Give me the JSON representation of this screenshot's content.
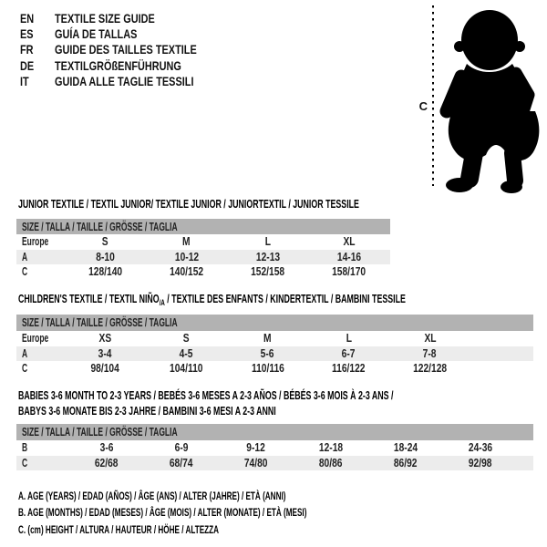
{
  "colors": {
    "header_bar": "#b2b2b2",
    "shaded_row": "#ececec",
    "text": "#1f1f1f",
    "silhouette": "#000000"
  },
  "header": {
    "entries": [
      {
        "code": "EN",
        "title": "TEXTILE SIZE GUIDE"
      },
      {
        "code": "ES",
        "title": "GUÍA DE TALLAS"
      },
      {
        "code": "FR",
        "title": "GUIDE DES TAILLES TEXTILE"
      },
      {
        "code": "DE",
        "title": "TEXTILGRÖßENFÜHRUNG"
      },
      {
        "code": "IT",
        "title": "GUIDA ALLE TAGLIE TESSILI"
      }
    ]
  },
  "figure": {
    "height_label": "C",
    "depicts": "baby-silhouette"
  },
  "tables": [
    {
      "title_lines": [
        [
          {
            "text": "JUNIOR TEXTILE / TEXTIL JUNIOR/ TEXTILE JUNIOR / JUNIORTEXTIL / JUNIOR TESSILE"
          }
        ]
      ],
      "size_header": "SIZE / TALLA / TAILLE / GRÖSSE / TAGLIA",
      "rows": [
        {
          "label": "Europe",
          "cells": [
            "S",
            "M",
            "L",
            "XL"
          ],
          "shaded": false
        },
        {
          "label": "A",
          "cells": [
            "8-10",
            "10-12",
            "12-13",
            "14-16"
          ],
          "shaded": true
        },
        {
          "label": "C",
          "cells": [
            "128/140",
            "140/152",
            "152/158",
            "158/170"
          ],
          "shaded": false
        }
      ]
    },
    {
      "title_lines": [
        [
          {
            "text": "CHILDREN'S TEXTILE / TEXTIL NIÑO"
          },
          {
            "text": "/A",
            "sub": true
          },
          {
            "text": " / TEXTILE DES ENFANTS / KINDERTEXTIL / BAMBINI TESSILE"
          }
        ]
      ],
      "size_header": "SIZE / TALLA / TAILLE / GRÖSSE / TAGLIA",
      "rows": [
        {
          "label": "Europe",
          "cells": [
            "XS",
            "S",
            "M",
            "L",
            "XL"
          ],
          "shaded": false
        },
        {
          "label": "A",
          "cells": [
            "3-4",
            "4-5",
            "5-6",
            "6-7",
            "7-8"
          ],
          "shaded": true
        },
        {
          "label": "C",
          "cells": [
            "98/104",
            "104/110",
            "110/116",
            "116/122",
            "122/128"
          ],
          "shaded": false
        }
      ]
    },
    {
      "title_lines": [
        [
          {
            "text": "BABIES 3-6 MONTH TO 2-3 YEARS / BEBÉS 3-6 MESES A 2-3 AÑOS / BÉBÉS 3-6 MOIS À 2-3 ANS /"
          }
        ],
        [
          {
            "text": "BABYS 3-6 MONATE BIS 2-3 JAHRE / BAMBINI 3-6 MESI A 2-3 ANNI"
          }
        ]
      ],
      "size_header": "SIZE / TALLA / TAILLE / GRÖSSE / TAGLIA",
      "rows": [
        {
          "label": "B",
          "cells": [
            "3-6",
            "6-9",
            "9-12",
            "12-18",
            "18-24",
            "24-36"
          ],
          "shaded": false
        },
        {
          "label": "C",
          "cells": [
            "62/68",
            "68/74",
            "74/80",
            "80/86",
            "86/92",
            "92/98"
          ],
          "shaded": true
        }
      ]
    }
  ],
  "footnotes": [
    "A. AGE (YEARS) / EDAD (AÑOS) / ÂGE (ANS) / ALTER (JAHRE) / ETÀ (ANNI)",
    "B. AGE (MONTHS) / EDAD (MESES) / ÂGE (MOIS) / ALTER (MONATE) / ETÀ (MESI)",
    "C. (cm) HEIGHT / ALTURA / HAUTEUR / HÖHE / ALTEZZA"
  ]
}
